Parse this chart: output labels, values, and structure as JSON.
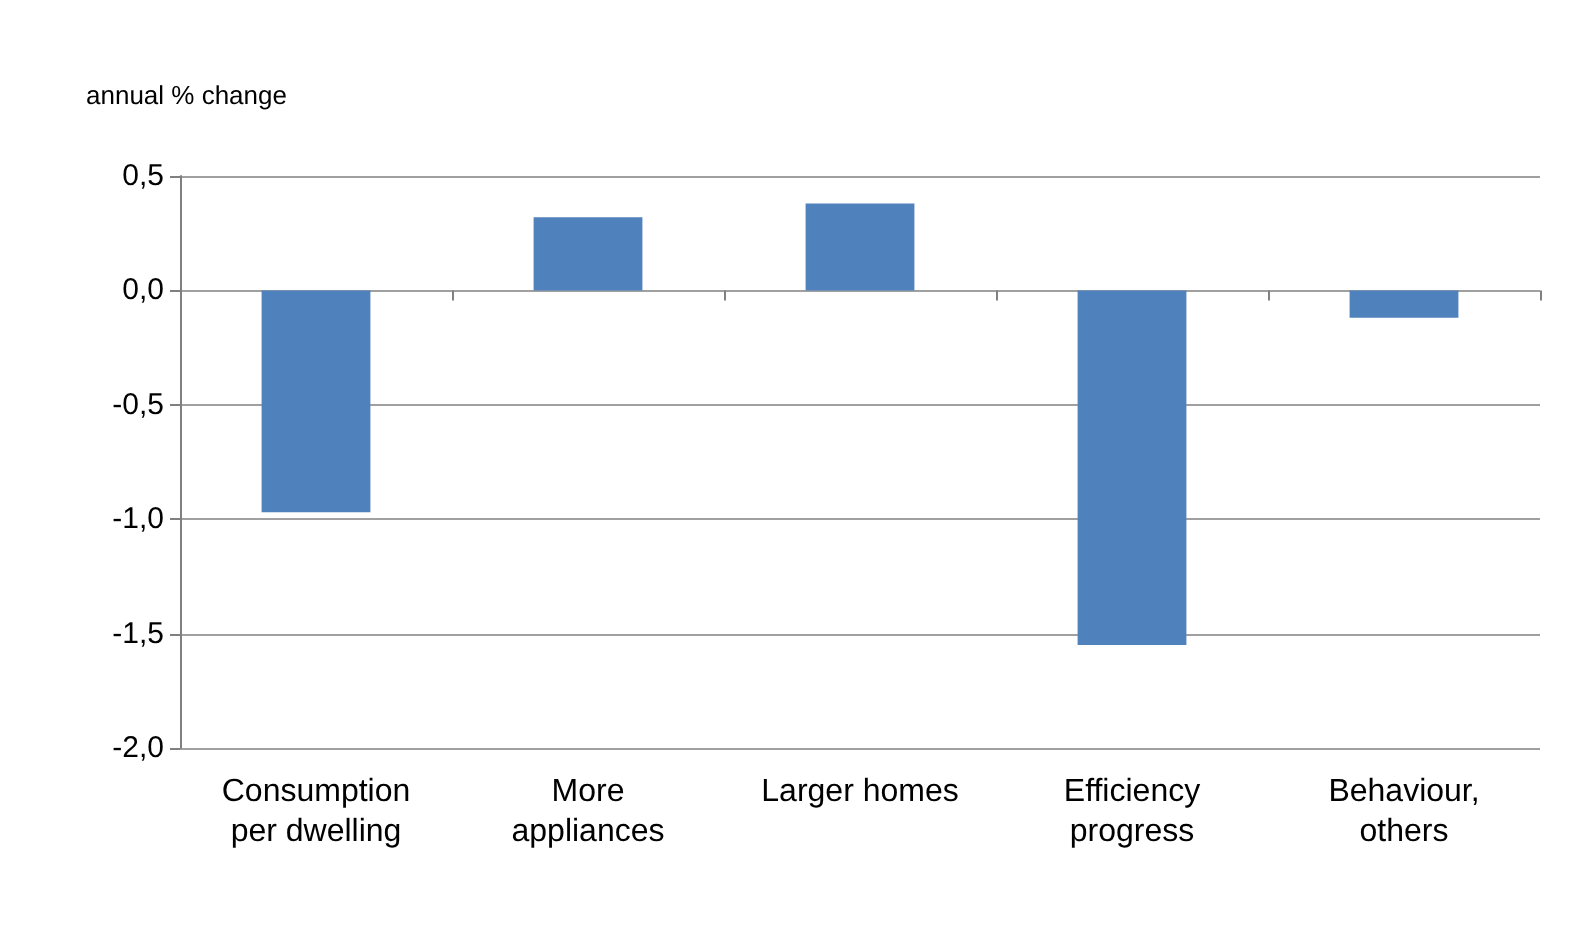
{
  "chart_data": {
    "type": "bar",
    "ylabel": "annual % change",
    "categories": [
      "Consumption\nper dwelling",
      "More\nappliances",
      "Larger homes",
      "Efficiency\nprogress",
      "Behaviour,\nothers"
    ],
    "values": [
      -0.97,
      0.32,
      0.38,
      -1.55,
      -0.12
    ],
    "color": "#4f81bd",
    "ylim": [
      -2,
      0.5
    ],
    "yticks": [
      {
        "value": -2,
        "label": "-2,0"
      },
      {
        "value": -1.5,
        "label": "-1,5"
      },
      {
        "value": -1,
        "label": "-1,0"
      },
      {
        "value": -0.5,
        "label": "-0,5"
      },
      {
        "value": 0,
        "label": "0,0"
      },
      {
        "value": 0.5,
        "label": "0,5"
      }
    ],
    "grid": "y"
  }
}
